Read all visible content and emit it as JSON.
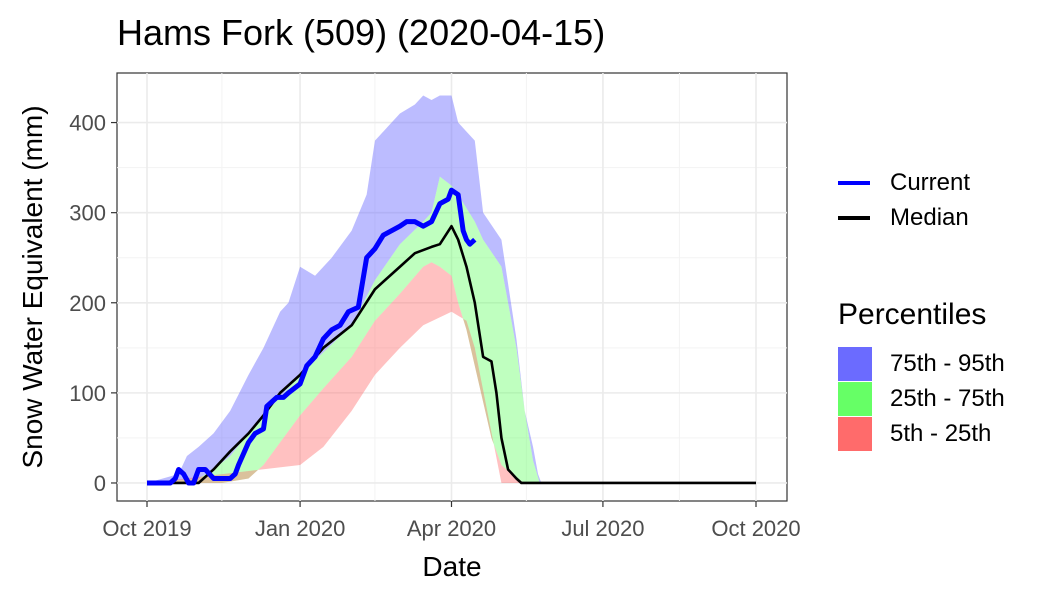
{
  "chart_data": {
    "type": "area",
    "title": "Hams Fork (509) (2020-04-15)",
    "xlabel": "Date",
    "ylabel": "Snow Water Equivalent (mm)",
    "x_ticks": [
      "Oct 2019",
      "Jan 2020",
      "Apr 2020",
      "Jul 2020",
      "Oct 2020"
    ],
    "y_ticks": [
      "0",
      "100",
      "200",
      "300",
      "400"
    ],
    "xlim": [
      "2019-10-01",
      "2020-10-01"
    ],
    "ylim": [
      -20,
      455
    ],
    "grid": true,
    "legend_position": "right",
    "lines_legend": [
      {
        "label": "Current",
        "color": "#0000ff"
      },
      {
        "label": "Median",
        "color": "#000000"
      }
    ],
    "percentiles_title": "Percentiles",
    "percentiles_legend": [
      {
        "label": "75th - 95th",
        "color": "#6b6bff"
      },
      {
        "label": "25th - 75th",
        "color": "#66ff66"
      },
      {
        "label": "5th - 25th",
        "color": "#ff6b6b"
      }
    ],
    "bands": {
      "p95": {
        "x": [
          "2019-10-01",
          "2019-10-20",
          "2019-10-25",
          "2019-11-01",
          "2019-11-10",
          "2019-11-20",
          "2019-12-01",
          "2019-12-10",
          "2019-12-20",
          "2019-12-25",
          "2020-01-01",
          "2020-01-10",
          "2020-01-20",
          "2020-02-01",
          "2020-02-10",
          "2020-02-15",
          "2020-02-20",
          "2020-03-01",
          "2020-03-10",
          "2020-03-15",
          "2020-03-20",
          "2020-03-25",
          "2020-04-01",
          "2020-04-05",
          "2020-04-10",
          "2020-04-15",
          "2020-04-20",
          "2020-05-01",
          "2020-05-10",
          "2020-05-15",
          "2020-05-20",
          "2020-05-23",
          "2020-05-25"
        ],
        "y": [
          0,
          10,
          30,
          40,
          55,
          80,
          120,
          150,
          190,
          200,
          240,
          230,
          250,
          280,
          320,
          380,
          390,
          410,
          420,
          430,
          425,
          430,
          430,
          400,
          390,
          380,
          300,
          270,
          160,
          80,
          40,
          10,
          0
        ]
      },
      "p75": {
        "x": [
          "2019-10-01",
          "2019-11-01",
          "2019-11-10",
          "2019-11-20",
          "2019-12-01",
          "2019-12-10",
          "2019-12-20",
          "2020-01-01",
          "2020-01-15",
          "2020-02-01",
          "2020-02-15",
          "2020-03-01",
          "2020-03-15",
          "2020-03-20",
          "2020-03-25",
          "2020-04-01",
          "2020-04-05",
          "2020-04-10",
          "2020-04-15",
          "2020-04-20",
          "2020-05-01",
          "2020-05-10",
          "2020-05-15",
          "2020-05-20",
          "2020-05-24"
        ],
        "y": [
          0,
          5,
          15,
          30,
          55,
          75,
          95,
          120,
          145,
          175,
          225,
          265,
          290,
          300,
          340,
          330,
          320,
          305,
          290,
          270,
          240,
          150,
          80,
          25,
          0
        ]
      },
      "p25": {
        "x": [
          "2019-10-01",
          "2019-11-15",
          "2019-12-01",
          "2019-12-10",
          "2019-12-20",
          "2020-01-01",
          "2020-01-15",
          "2020-02-01",
          "2020-02-15",
          "2020-03-01",
          "2020-03-15",
          "2020-03-20",
          "2020-03-25",
          "2020-04-01",
          "2020-04-05",
          "2020-04-10",
          "2020-04-15",
          "2020-04-20",
          "2020-04-25",
          "2020-05-01",
          "2020-05-10",
          "2020-05-15"
        ],
        "y": [
          0,
          0,
          5,
          20,
          45,
          75,
          105,
          140,
          180,
          210,
          240,
          245,
          240,
          230,
          200,
          170,
          130,
          90,
          50,
          20,
          5,
          0
        ]
      },
      "p5": {
        "x": [
          "2019-10-01",
          "2020-01-01",
          "2020-01-15",
          "2020-02-01",
          "2020-02-15",
          "2020-03-01",
          "2020-03-15",
          "2020-04-01",
          "2020-04-10",
          "2020-04-15",
          "2020-05-01",
          "2020-10-01"
        ],
        "y": [
          0,
          20,
          40,
          80,
          120,
          150,
          175,
          190,
          180,
          150,
          0,
          0
        ]
      }
    },
    "series": [
      {
        "name": "Current",
        "color": "#0000ff",
        "x": [
          "2019-10-01",
          "2019-10-15",
          "2019-10-18",
          "2019-10-20",
          "2019-10-23",
          "2019-10-26",
          "2019-10-29",
          "2019-11-01",
          "2019-11-05",
          "2019-11-10",
          "2019-11-15",
          "2019-11-20",
          "2019-11-23",
          "2019-11-25",
          "2019-12-01",
          "2019-12-05",
          "2019-12-10",
          "2019-12-12",
          "2019-12-18",
          "2019-12-22",
          "2019-12-25",
          "2020-01-01",
          "2020-01-05",
          "2020-01-10",
          "2020-01-15",
          "2020-01-20",
          "2020-01-25",
          "2020-01-30",
          "2020-02-05",
          "2020-02-10",
          "2020-02-15",
          "2020-02-20",
          "2020-02-25",
          "2020-03-01",
          "2020-03-05",
          "2020-03-10",
          "2020-03-15",
          "2020-03-20",
          "2020-03-25",
          "2020-03-30",
          "2020-04-01",
          "2020-04-05",
          "2020-04-08",
          "2020-04-10",
          "2020-04-12",
          "2020-04-15"
        ],
        "y": [
          0,
          0,
          5,
          15,
          10,
          0,
          0,
          15,
          15,
          5,
          5,
          5,
          10,
          20,
          45,
          55,
          60,
          85,
          95,
          95,
          100,
          110,
          130,
          140,
          160,
          170,
          175,
          190,
          195,
          250,
          260,
          275,
          280,
          285,
          290,
          290,
          285,
          290,
          310,
          315,
          325,
          320,
          280,
          270,
          265,
          270
        ]
      },
      {
        "name": "Median",
        "color": "#000000",
        "x": [
          "2019-10-01",
          "2019-11-01",
          "2019-11-10",
          "2019-11-20",
          "2019-12-01",
          "2019-12-10",
          "2019-12-20",
          "2020-01-01",
          "2020-01-15",
          "2020-02-01",
          "2020-02-15",
          "2020-03-01",
          "2020-03-10",
          "2020-03-20",
          "2020-03-25",
          "2020-04-01",
          "2020-04-05",
          "2020-04-10",
          "2020-04-15",
          "2020-04-20",
          "2020-04-25",
          "2020-04-28",
          "2020-05-01",
          "2020-05-05",
          "2020-05-10",
          "2020-05-13",
          "2020-05-16",
          "2020-10-01"
        ],
        "y": [
          0,
          0,
          15,
          35,
          55,
          75,
          100,
          120,
          150,
          175,
          215,
          240,
          255,
          262,
          265,
          285,
          270,
          240,
          200,
          140,
          135,
          100,
          50,
          15,
          5,
          0,
          0,
          0
        ]
      }
    ]
  }
}
